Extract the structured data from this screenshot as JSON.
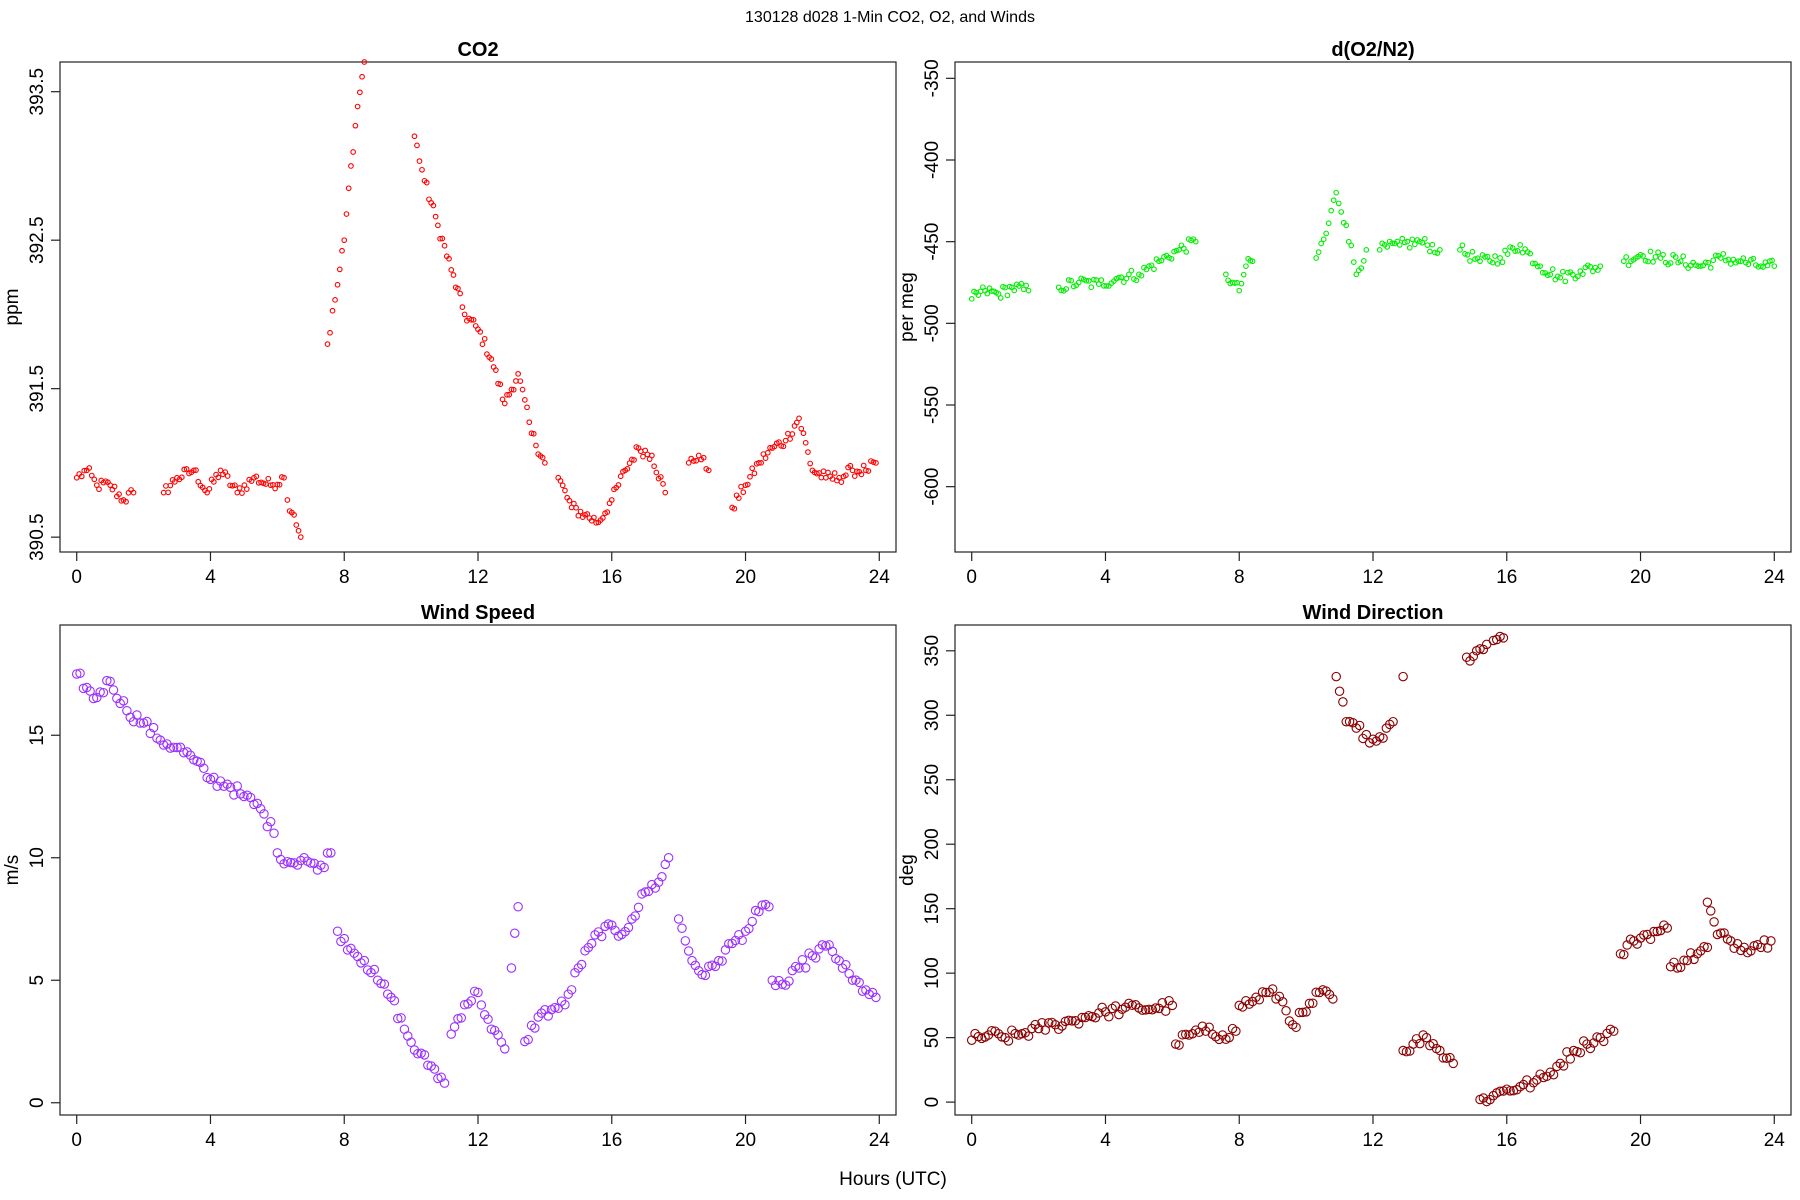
{
  "figure": {
    "main_title": "130128   d028   1-Min CO2, O2, and Winds",
    "xlabel": "Hours (UTC)"
  },
  "chart_data": [
    {
      "type": "scatter",
      "title": "CO2",
      "ylabel": "ppm",
      "xlabel": "",
      "xlim": [
        -0.5,
        24.5
      ],
      "ylim": [
        390.4,
        393.7
      ],
      "xticks": [
        0,
        4,
        8,
        12,
        16,
        20,
        24
      ],
      "yticks": [
        390.5,
        391.5,
        392.5,
        393.5
      ],
      "grid": false,
      "color": "#ff0000",
      "segments": [
        {
          "x": [
            0,
            0.3,
            0.6,
            1.0,
            1.4,
            1.7
          ],
          "y": [
            390.9,
            390.95,
            390.85,
            390.85,
            390.75,
            390.8
          ]
        },
        {
          "x": [
            2.6,
            3.0,
            3.5,
            3.9,
            4.3,
            4.8,
            5.3,
            5.8,
            6.2
          ],
          "y": [
            390.8,
            390.9,
            390.95,
            390.8,
            390.95,
            390.8,
            390.9,
            390.85,
            390.9
          ]
        },
        {
          "x": [
            6.3,
            6.5,
            6.7
          ],
          "y": [
            390.75,
            390.65,
            390.5
          ]
        },
        {
          "x": [
            7.5,
            7.8,
            8.0,
            8.2,
            8.4,
            8.6
          ],
          "y": [
            391.8,
            392.2,
            392.5,
            393.0,
            393.4,
            393.7
          ]
        },
        {
          "x": [
            10.1,
            10.4,
            10.8,
            11.2,
            11.6,
            12.0,
            12.4,
            12.8,
            13.2,
            13.6,
            14.0
          ],
          "y": [
            393.2,
            392.9,
            392.6,
            392.3,
            392.0,
            391.9,
            391.7,
            391.4,
            391.6,
            391.2,
            391.0
          ]
        },
        {
          "x": [
            14.4,
            14.8,
            15.2,
            15.6,
            16.0,
            16.4,
            16.8,
            17.2,
            17.6
          ],
          "y": [
            390.9,
            390.7,
            390.65,
            390.6,
            390.75,
            390.95,
            391.1,
            391.05,
            390.8
          ]
        },
        {
          "x": [
            18.3,
            18.6,
            18.9
          ],
          "y": [
            391.0,
            391.05,
            390.95
          ]
        },
        {
          "x": [
            19.6,
            20.0,
            20.4,
            20.8,
            21.2,
            21.6,
            22.0,
            22.4,
            22.8,
            23.2,
            23.6,
            23.9
          ],
          "y": [
            390.7,
            390.85,
            391.0,
            391.1,
            391.15,
            391.3,
            390.95,
            390.9,
            390.9,
            390.95,
            390.95,
            391.0
          ]
        }
      ]
    },
    {
      "type": "scatter",
      "title": "d(O2/N2)",
      "ylabel": "per meg",
      "xlabel": "",
      "xlim": [
        -0.5,
        24.5
      ],
      "ylim": [
        -640,
        -340
      ],
      "xticks": [
        0,
        4,
        8,
        12,
        16,
        20,
        24
      ],
      "yticks": [
        -600,
        -550,
        -500,
        -450,
        -400,
        -350
      ],
      "grid": false,
      "color": "#00ee00",
      "segments": [
        {
          "x": [
            0,
            0.4,
            0.8,
            1.2,
            1.7
          ],
          "y": [
            -485,
            -480,
            -482,
            -478,
            -480
          ]
        },
        {
          "x": [
            2.6,
            3.2,
            3.8,
            4.4,
            5.0,
            5.6,
            6.2,
            6.7
          ],
          "y": [
            -478,
            -475,
            -476,
            -472,
            -470,
            -462,
            -455,
            -450
          ]
        },
        {
          "x": [
            7.6,
            7.8,
            8.0,
            8.2,
            8.4
          ],
          "y": [
            -470,
            -475,
            -480,
            -465,
            -462
          ]
        },
        {
          "x": [
            10.3,
            10.6,
            10.9,
            11.2,
            11.5,
            11.8
          ],
          "y": [
            -460,
            -445,
            -420,
            -440,
            -470,
            -455
          ]
        },
        {
          "x": [
            12.2,
            12.8,
            13.4,
            14.0
          ],
          "y": [
            -455,
            -452,
            -450,
            -455
          ]
        },
        {
          "x": [
            14.6,
            15.2,
            15.8,
            16.4,
            17.0,
            17.6,
            18.2,
            18.8
          ],
          "y": [
            -455,
            -462,
            -460,
            -452,
            -465,
            -472,
            -468,
            -465
          ]
        },
        {
          "x": [
            19.5,
            20.0,
            20.6,
            21.2,
            21.8,
            22.4,
            23.0,
            23.6,
            24.0
          ],
          "y": [
            -462,
            -458,
            -460,
            -462,
            -465,
            -460,
            -462,
            -465,
            -465
          ]
        }
      ]
    },
    {
      "type": "scatter",
      "title": "Wind Speed",
      "ylabel": "m/s",
      "xlabel": "",
      "xlim": [
        -0.5,
        24.5
      ],
      "ylim": [
        -0.5,
        19.5
      ],
      "xticks": [
        0,
        4,
        8,
        12,
        16,
        20,
        24
      ],
      "yticks": [
        0,
        5,
        10,
        15
      ],
      "grid": false,
      "color": "#9b30ff",
      "segments": [
        {
          "x": [
            0,
            0.5,
            1.0,
            1.5,
            2.0,
            2.5,
            3.0,
            3.5,
            4.0,
            4.5,
            5.0,
            5.5,
            5.9
          ],
          "y": [
            17.5,
            16.5,
            17.2,
            16.0,
            15.5,
            14.8,
            14.5,
            14.0,
            13.2,
            13.0,
            12.5,
            12.0,
            11.0
          ]
        },
        {
          "x": [
            6.0,
            6.4,
            6.8,
            7.2,
            7.6
          ],
          "y": [
            10.2,
            9.8,
            10.0,
            9.5,
            10.2
          ]
        },
        {
          "x": [
            7.8,
            8.2,
            8.6,
            9.0,
            9.4,
            9.8,
            10.2,
            10.6,
            11.0
          ],
          "y": [
            7.0,
            6.3,
            5.8,
            5.0,
            4.3,
            3.0,
            2.0,
            1.5,
            0.8
          ]
        },
        {
          "x": [
            11.2,
            11.6,
            12.0,
            12.4,
            12.8
          ],
          "y": [
            2.8,
            4.0,
            4.5,
            3.0,
            2.2
          ]
        },
        {
          "x": [
            13.0,
            13.2
          ],
          "y": [
            5.5,
            8.0
          ]
        },
        {
          "x": [
            13.4,
            13.8,
            14.2,
            14.6,
            15.0,
            15.4,
            15.8,
            16.2,
            16.6,
            17.0,
            17.4,
            17.7
          ],
          "y": [
            2.5,
            3.5,
            3.8,
            4.0,
            5.5,
            6.5,
            7.2,
            6.8,
            7.5,
            8.6,
            9.0,
            10.0
          ]
        },
        {
          "x": [
            18.0,
            18.4,
            18.8,
            19.2,
            19.6,
            20.0,
            20.4,
            20.7
          ],
          "y": [
            7.5,
            5.8,
            5.2,
            5.8,
            6.5,
            7.0,
            7.8,
            8.0
          ]
        },
        {
          "x": [
            20.8,
            21.2,
            21.6,
            22.0,
            22.4,
            22.8,
            23.2,
            23.6,
            23.9
          ],
          "y": [
            5.0,
            4.8,
            5.5,
            6.0,
            6.4,
            5.8,
            5.0,
            4.6,
            4.3
          ]
        }
      ]
    },
    {
      "type": "scatter",
      "title": "Wind Direction",
      "ylabel": "deg",
      "xlabel": "",
      "xlim": [
        -0.5,
        24.5
      ],
      "ylim": [
        -10,
        370
      ],
      "xticks": [
        0,
        4,
        8,
        12,
        16,
        20,
        24
      ],
      "yticks": [
        0,
        50,
        100,
        150,
        200,
        250,
        300,
        350
      ],
      "grid": false,
      "color": "#8b0000",
      "segments": [
        {
          "x": [
            0,
            0.5,
            1.0,
            1.5,
            2.0,
            2.5,
            3.0,
            3.5,
            4.0,
            4.5,
            5.0,
            5.5,
            6.0
          ],
          "y": [
            48,
            52,
            50,
            53,
            57,
            60,
            63,
            67,
            70,
            72,
            73,
            73,
            75
          ]
        },
        {
          "x": [
            6.1,
            6.5,
            7.0,
            7.5,
            7.9
          ],
          "y": [
            45,
            52,
            55,
            52,
            55
          ]
        },
        {
          "x": [
            8.0,
            8.4,
            8.8,
            9.2,
            9.6,
            10.0,
            10.4,
            10.8
          ],
          "y": [
            75,
            78,
            85,
            82,
            60,
            70,
            85,
            80
          ]
        },
        {
          "x": [
            10.9,
            11.2,
            11.5,
            11.8,
            12.1,
            12.4,
            12.6
          ],
          "y": [
            330,
            295,
            290,
            285,
            280,
            290,
            295
          ]
        },
        {
          "x": [
            12.9
          ],
          "y": [
            330
          ]
        },
        {
          "x": [
            12.9,
            13.2,
            13.6,
            14.0,
            14.4
          ],
          "y": [
            40,
            45,
            50,
            40,
            30
          ]
        },
        {
          "x": [
            14.8,
            15.1,
            15.4
          ],
          "y": [
            345,
            350,
            355
          ]
        },
        {
          "x": [
            15.6,
            15.9
          ],
          "y": [
            358,
            360
          ]
        },
        {
          "x": [
            15.2,
            15.6,
            16.0,
            16.4,
            16.8,
            17.2,
            17.6,
            18.0,
            18.4,
            18.8,
            19.2
          ],
          "y": [
            2,
            5,
            10,
            12,
            15,
            20,
            30,
            40,
            45,
            50,
            55
          ]
        },
        {
          "x": [
            19.4,
            19.8,
            20.2,
            20.6,
            20.8
          ],
          "y": [
            115,
            125,
            130,
            133,
            135
          ]
        },
        {
          "x": [
            20.9,
            21.3,
            21.7,
            22.0
          ],
          "y": [
            105,
            110,
            115,
            120
          ]
        },
        {
          "x": [
            22.0,
            22.3,
            22.7,
            23.1,
            23.5,
            23.9
          ],
          "y": [
            155,
            130,
            125,
            120,
            122,
            125
          ]
        }
      ]
    }
  ]
}
